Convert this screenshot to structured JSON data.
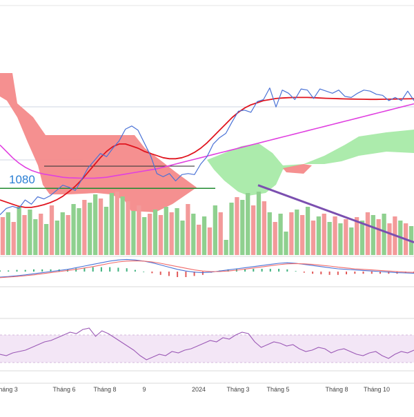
{
  "chart_data": {
    "type": "line",
    "colors": {
      "price_line": "#4a72d6",
      "ma_short": "#e0141e",
      "ma_long": "#e040e0",
      "cloud_bearish": "#f48a8a",
      "cloud_bullish": "#a8eaa8",
      "volume_up": "#8fd08f",
      "volume_down": "#f39a9a",
      "macd_line": "#4a72d6",
      "signal_line": "#f06a6a",
      "rsi_line": "#9b59b6",
      "rsi_band": "#f3e6f6",
      "trendline": "#7b4fb0",
      "support_green": "#1f8a2f",
      "support_dark": "#3a3a3a",
      "annotation": "#2a7fd4"
    },
    "annotation": {
      "text": "1080"
    },
    "x_ticks": [
      "háng 3",
      "Tháng 6",
      "Tháng 8",
      "9",
      "2024",
      "Tháng 3",
      "Tháng 5",
      "Tháng 8",
      "Tháng 10"
    ],
    "price": [
      620,
      680,
      700,
      680,
      760,
      720,
      790,
      770,
      800,
      850,
      900,
      880,
      850,
      950,
      1060,
      1130,
      1200,
      1170,
      1250,
      1320,
      1430,
      1460,
      1420,
      1300,
      1180,
      1010,
      980,
      1010,
      940,
      1000,
      1010,
      1000,
      1100,
      1170,
      1290,
      1350,
      1390,
      1500,
      1600,
      1610,
      1590,
      1690,
      1710,
      1820,
      1640,
      1800,
      1770,
      1710,
      1810,
      1800,
      1720,
      1810,
      1790,
      1770,
      1800,
      1740,
      1730,
      1770,
      1800,
      1790,
      1760,
      1750,
      1700,
      1730,
      1700,
      1790,
      1700
    ],
    "ma_short": [
      760,
      740,
      720,
      700,
      690,
      690,
      700,
      715,
      735,
      760,
      795,
      840,
      890,
      950,
      1020,
      1090,
      1160,
      1220,
      1265,
      1290,
      1290,
      1270,
      1250,
      1220,
      1200,
      1180,
      1160,
      1150,
      1150,
      1160,
      1180,
      1210,
      1250,
      1300,
      1360,
      1420,
      1480,
      1540,
      1590,
      1630,
      1660,
      1680,
      1700,
      1710,
      1720,
      1725,
      1728,
      1730,
      1730,
      1730,
      1728,
      1725,
      1722,
      1720,
      1718,
      1716,
      1715,
      1714,
      1713,
      1712,
      1712,
      1713,
      1714,
      1715,
      1716,
      1717,
      1718
    ],
    "ma_long": [
      1280,
      1220,
      1160,
      1110,
      1070,
      1040,
      1020,
      1005,
      995,
      985,
      975,
      970,
      968,
      966,
      966,
      966,
      970,
      975,
      985,
      995,
      1005,
      1015,
      1025,
      1035,
      1045,
      1055,
      1070,
      1085,
      1100,
      1115,
      1130,
      1145,
      1160,
      1175,
      1190,
      1205,
      1220,
      1235,
      1250,
      1265,
      1280,
      1295,
      1310,
      1325,
      1340,
      1355,
      1370,
      1385,
      1400,
      1415,
      1430,
      1445,
      1460,
      1475,
      1490,
      1505,
      1520,
      1535,
      1550,
      1565,
      1580,
      1595,
      1610,
      1625,
      1640,
      1655,
      1670
    ],
    "volume": [
      {
        "v": 55,
        "up": false
      },
      {
        "v": 62,
        "up": true
      },
      {
        "v": 48,
        "up": false
      },
      {
        "v": 70,
        "up": true
      },
      {
        "v": 58,
        "up": false
      },
      {
        "v": 66,
        "up": true
      },
      {
        "v": 52,
        "up": true
      },
      {
        "v": 60,
        "up": false
      },
      {
        "v": 45,
        "up": true
      },
      {
        "v": 72,
        "up": false
      },
      {
        "v": 50,
        "up": true
      },
      {
        "v": 62,
        "up": true
      },
      {
        "v": 58,
        "up": false
      },
      {
        "v": 74,
        "up": true
      },
      {
        "v": 68,
        "up": true
      },
      {
        "v": 80,
        "up": false
      },
      {
        "v": 76,
        "up": true
      },
      {
        "v": 88,
        "up": true
      },
      {
        "v": 82,
        "up": false
      },
      {
        "v": 70,
        "up": true
      },
      {
        "v": 90,
        "up": true
      },
      {
        "v": 92,
        "up": false
      },
      {
        "v": 85,
        "up": true
      },
      {
        "v": 78,
        "up": false
      },
      {
        "v": 64,
        "up": true
      },
      {
        "v": 72,
        "up": false
      },
      {
        "v": 55,
        "up": true
      },
      {
        "v": 60,
        "up": false
      },
      {
        "v": 66,
        "up": true
      },
      {
        "v": 58,
        "up": false
      },
      {
        "v": 70,
        "up": true
      },
      {
        "v": 62,
        "up": false
      },
      {
        "v": 68,
        "up": true
      },
      {
        "v": 50,
        "up": true
      },
      {
        "v": 74,
        "up": false
      },
      {
        "v": 60,
        "up": true
      },
      {
        "v": 44,
        "up": false
      },
      {
        "v": 56,
        "up": true
      },
      {
        "v": 40,
        "up": false
      },
      {
        "v": 72,
        "up": true
      },
      {
        "v": 62,
        "up": false
      },
      {
        "v": 22,
        "up": true
      },
      {
        "v": 76,
        "up": true
      },
      {
        "v": 84,
        "up": false
      },
      {
        "v": 80,
        "up": true
      },
      {
        "v": 90,
        "up": true
      },
      {
        "v": 72,
        "up": false
      },
      {
        "v": 92,
        "up": true
      },
      {
        "v": 78,
        "up": false
      },
      {
        "v": 62,
        "up": true
      },
      {
        "v": 48,
        "up": false
      },
      {
        "v": 60,
        "up": true
      },
      {
        "v": 34,
        "up": true
      },
      {
        "v": 62,
        "up": false
      },
      {
        "v": 66,
        "up": true
      },
      {
        "v": 58,
        "up": false
      },
      {
        "v": 70,
        "up": true
      },
      {
        "v": 50,
        "up": false
      },
      {
        "v": 56,
        "up": true
      },
      {
        "v": 60,
        "up": false
      },
      {
        "v": 48,
        "up": true
      },
      {
        "v": 56,
        "up": false
      },
      {
        "v": 46,
        "up": true
      },
      {
        "v": 52,
        "up": false
      },
      {
        "v": 40,
        "up": true
      },
      {
        "v": 55,
        "up": false
      },
      {
        "v": 50,
        "up": true
      },
      {
        "v": 62,
        "up": false
      },
      {
        "v": 58,
        "up": true
      },
      {
        "v": 52,
        "up": false
      },
      {
        "v": 60,
        "up": true
      },
      {
        "v": 46,
        "up": false
      },
      {
        "v": 56,
        "up": false
      },
      {
        "v": 50,
        "up": true
      },
      {
        "v": 46,
        "up": false
      },
      {
        "v": 42,
        "up": true
      }
    ],
    "macd": [
      -20,
      -18,
      -15,
      -12,
      -8,
      -4,
      0,
      4,
      8,
      14,
      20,
      26,
      32,
      38,
      42,
      44,
      42,
      38,
      32,
      24,
      16,
      8,
      2,
      -2,
      -4,
      -2,
      2,
      6,
      10,
      14,
      18,
      22,
      26,
      30,
      32,
      30,
      26,
      22,
      18,
      14,
      10,
      8,
      6,
      4,
      2,
      0,
      -2,
      -4,
      -5,
      -6
    ],
    "signal": [
      -22,
      -20,
      -18,
      -15,
      -12,
      -8,
      -4,
      0,
      4,
      8,
      13,
      18,
      24,
      30,
      35,
      38,
      39,
      38,
      35,
      30,
      24,
      18,
      12,
      6,
      2,
      0,
      0,
      2,
      5,
      9,
      13,
      17,
      21,
      25,
      28,
      29,
      28,
      26,
      23,
      20,
      16,
      13,
      10,
      8,
      6,
      4,
      2,
      0,
      -2,
      -3
    ],
    "rsi": [
      42,
      40,
      44,
      46,
      48,
      52,
      56,
      60,
      62,
      66,
      70,
      74,
      72,
      78,
      80,
      68,
      76,
      72,
      66,
      60,
      54,
      48,
      40,
      34,
      38,
      42,
      40,
      46,
      44,
      48,
      50,
      54,
      58,
      62,
      60,
      66,
      64,
      70,
      74,
      72,
      60,
      52,
      56,
      60,
      58,
      54,
      56,
      50,
      46,
      48,
      52,
      50,
      44,
      48,
      50,
      46,
      42,
      40,
      44,
      46,
      40,
      36,
      42,
      46,
      44,
      48
    ],
    "lines": {
      "support_dark": 1080,
      "support_green": 870,
      "trend_start": 900,
      "trend_end": 620
    }
  }
}
